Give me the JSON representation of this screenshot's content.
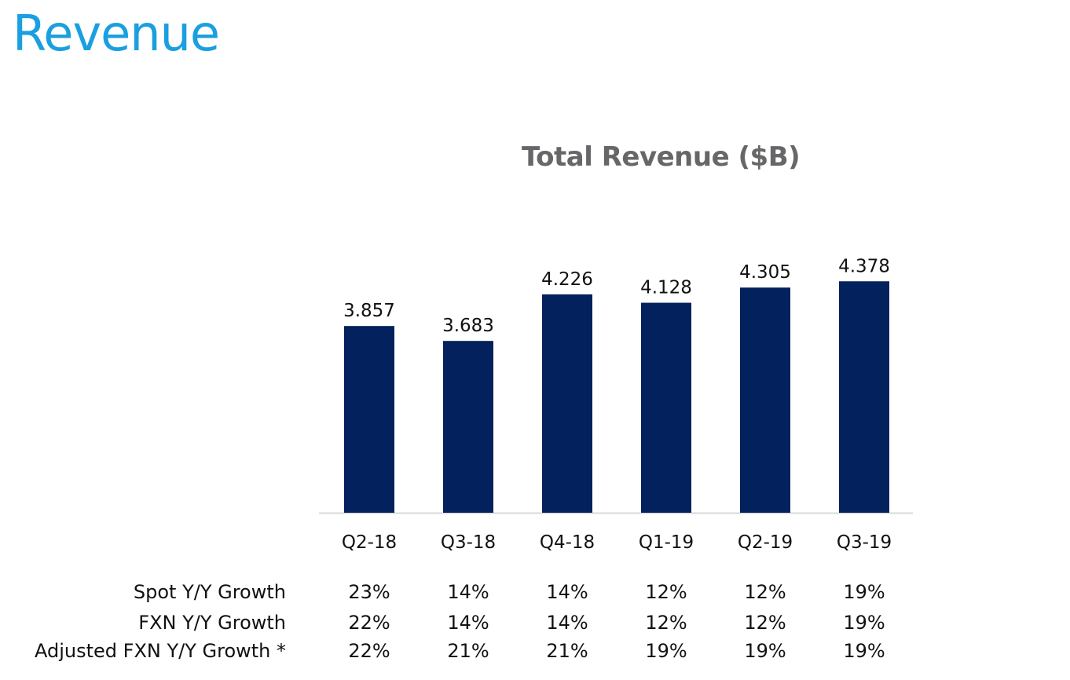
{
  "slide": {
    "title": "Revenue"
  },
  "colors": {
    "bar": "#03215c",
    "title": "#1a9fe0",
    "chart_title": "#67676a",
    "axis": "#d9d9d9"
  },
  "chart_data": {
    "type": "bar",
    "title": "Total Revenue ($B)",
    "categories": [
      "Q2-18",
      "Q3-18",
      "Q4-18",
      "Q1-19",
      "Q2-19",
      "Q3-19"
    ],
    "values": [
      3.857,
      3.683,
      4.226,
      4.128,
      4.305,
      4.378
    ],
    "value_labels": [
      "3.857",
      "3.683",
      "4.226",
      "4.128",
      "4.305",
      "4.378"
    ],
    "xlabel": "",
    "ylabel": "",
    "ylim": [
      1.68,
      4.6
    ],
    "grid": false,
    "legend": "none"
  },
  "table": {
    "rows": [
      {
        "label": "Spot Y/Y Growth",
        "values": [
          "23%",
          "14%",
          "14%",
          "12%",
          "12%",
          "19%"
        ]
      },
      {
        "label": "FXN Y/Y Growth",
        "values": [
          "22%",
          "14%",
          "14%",
          "12%",
          "12%",
          "19%"
        ]
      },
      {
        "label": "Adjusted FXN Y/Y Growth *",
        "values": [
          "22%",
          "21%",
          "21%",
          "19%",
          "19%",
          "19%"
        ]
      }
    ]
  }
}
